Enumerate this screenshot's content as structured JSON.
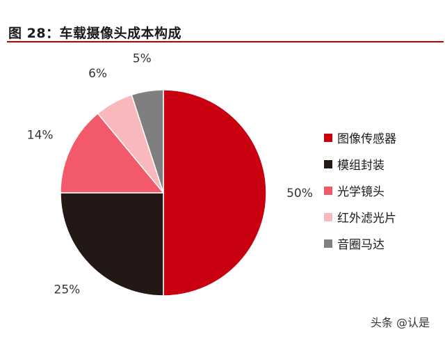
{
  "header": {
    "title": "图 28：车载摄像头成本构成"
  },
  "chart_data": {
    "type": "pie",
    "categories": [
      "图像传感器",
      "模组封装",
      "光学镜头",
      "红外滤光片",
      "音圈马达"
    ],
    "values": [
      50,
      25,
      14,
      6,
      5
    ],
    "labels": [
      "50%",
      "25%",
      "14%",
      "6%",
      "5%"
    ],
    "colors": [
      "#c8000f",
      "#231815",
      "#f25a6b",
      "#f9b8bb",
      "#7f7f7f"
    ],
    "start_angle_deg": 0,
    "direction": "clockwise",
    "legend_placement": "right"
  },
  "watermark": {
    "text": "头条 @认是"
  }
}
